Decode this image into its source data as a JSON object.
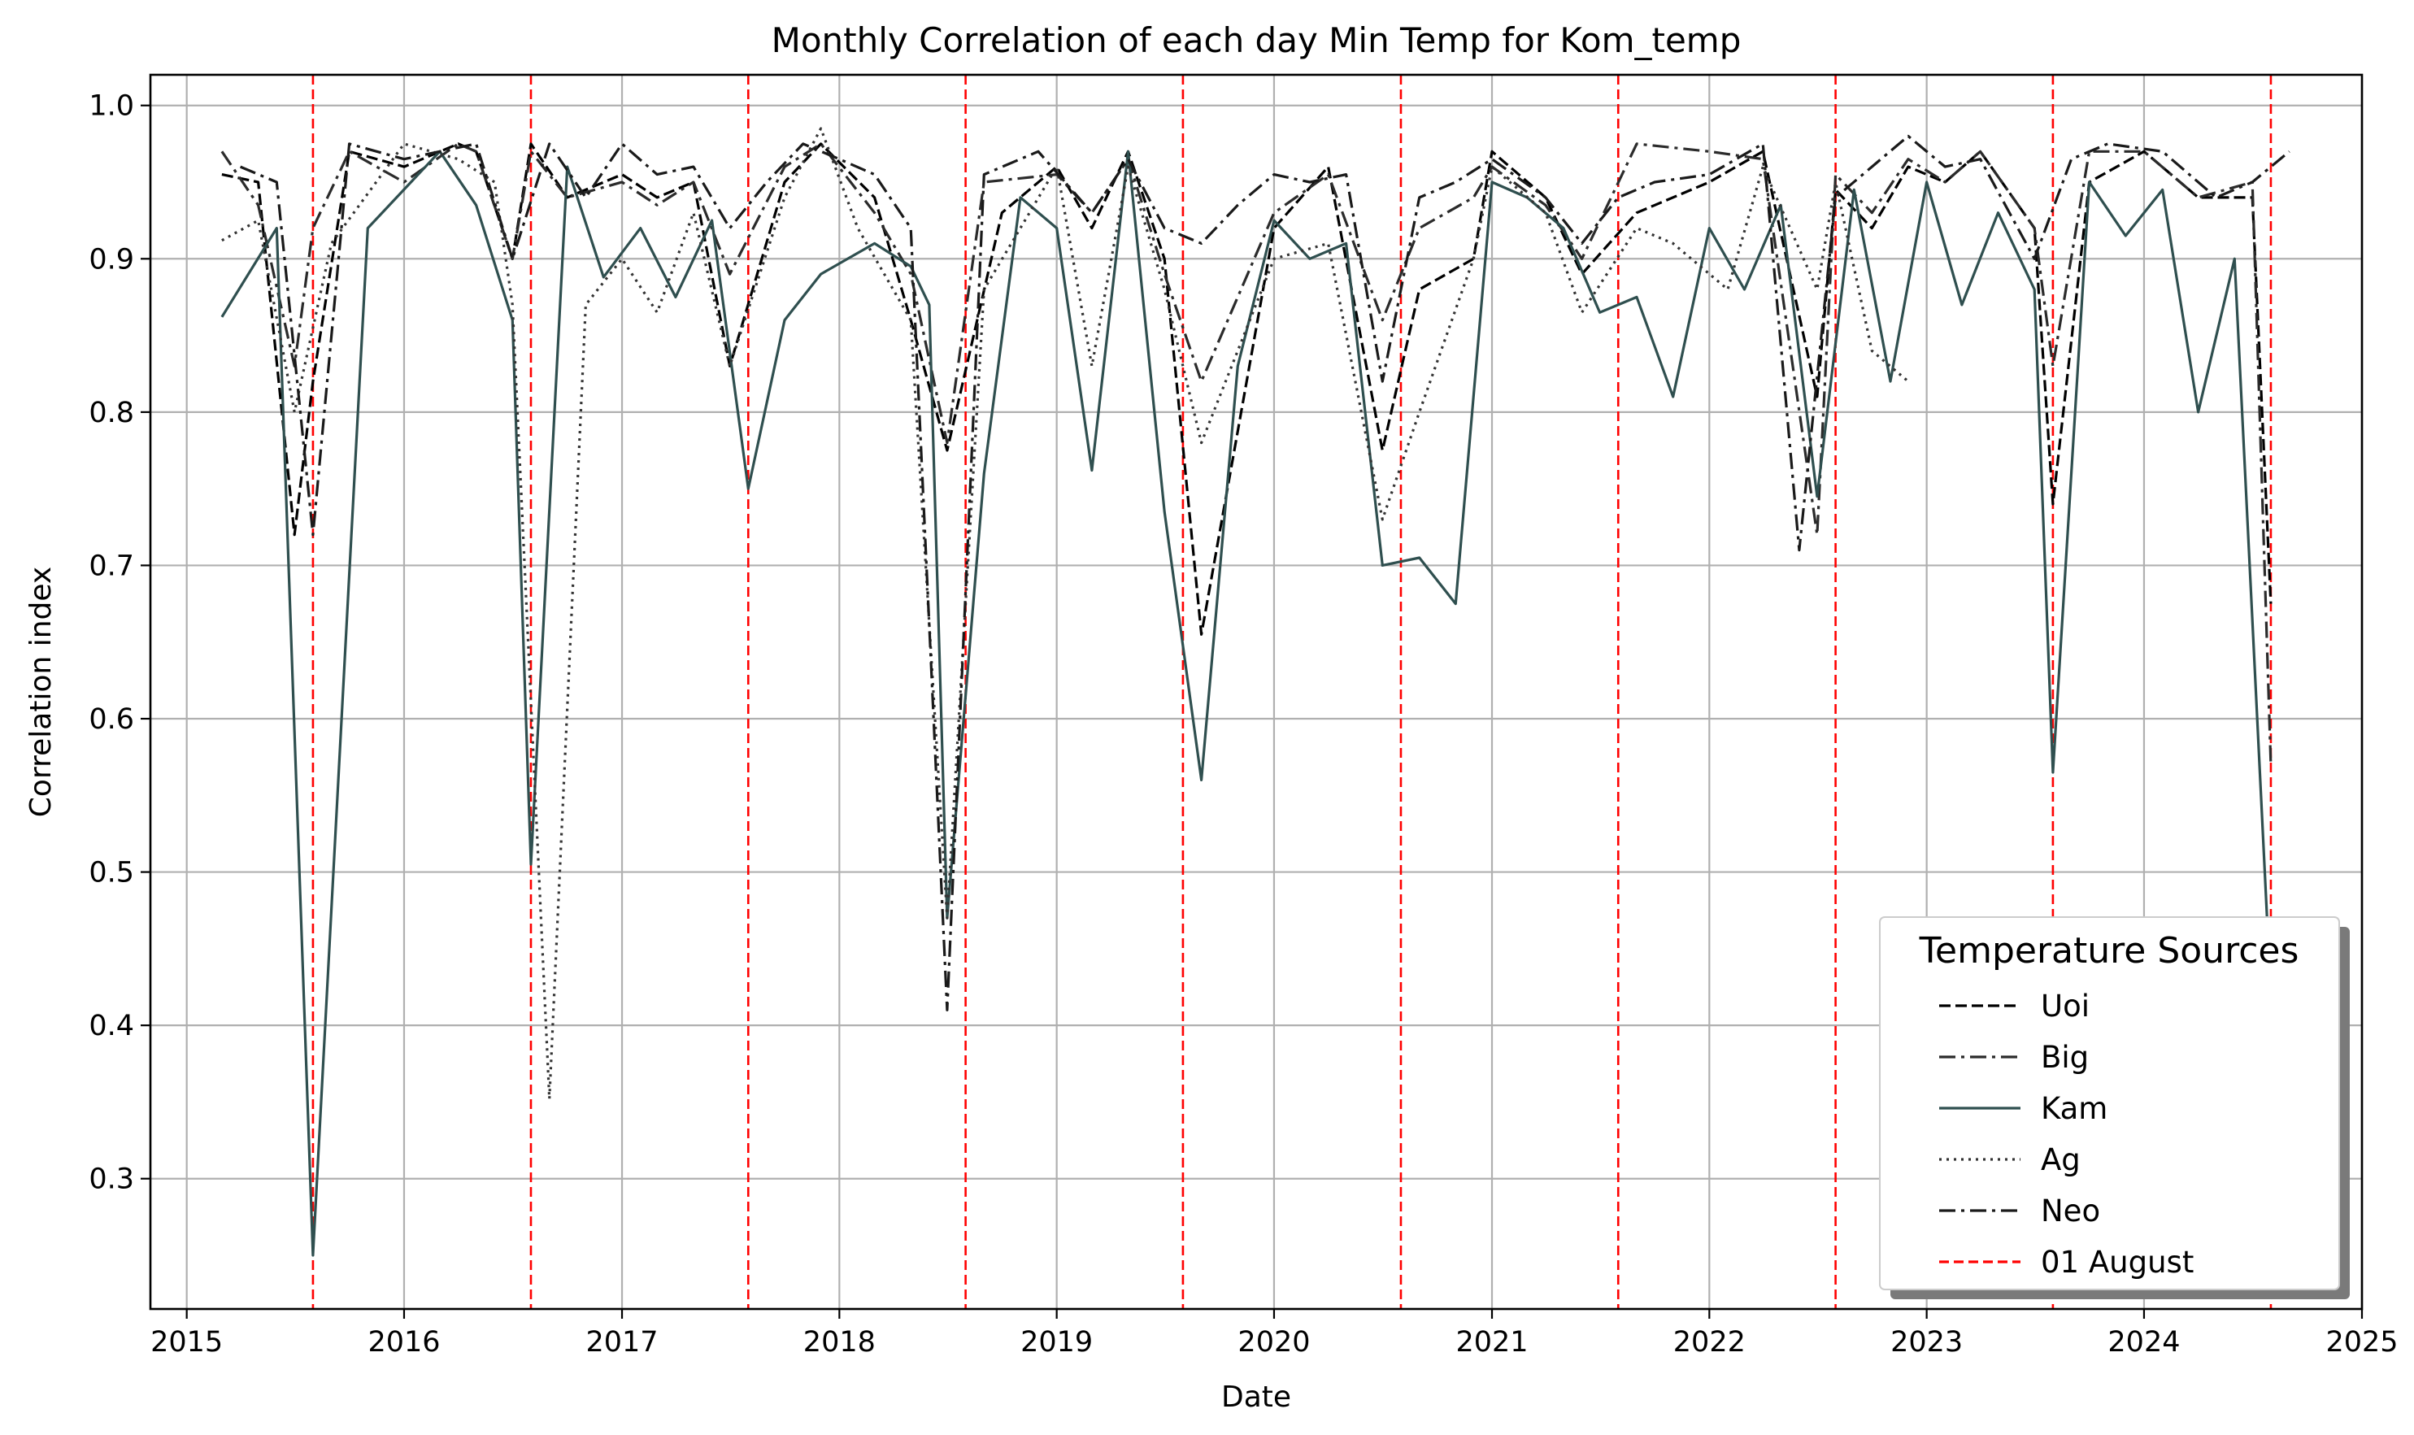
{
  "chart_data": {
    "type": "line",
    "title": "Monthly Correlation of each day Min Temp for Kom_temp",
    "xlabel": "Date",
    "ylabel": "Correlation index",
    "xlim": [
      "2014-11-01",
      "2025-01-01"
    ],
    "ylim": [
      0.215,
      1.02
    ],
    "x_ticks": [
      "2015",
      "2016",
      "2017",
      "2018",
      "2019",
      "2020",
      "2021",
      "2022",
      "2023",
      "2024",
      "2025"
    ],
    "y_ticks": [
      "0.3",
      "0.4",
      "0.5",
      "0.6",
      "0.7",
      "0.8",
      "0.9",
      "1.0"
    ],
    "grid": true,
    "legend": {
      "title": "Temperature Sources",
      "placement": "lower-right",
      "entries": [
        "Uoi",
        "Big",
        "Kam",
        "Ag",
        "Neo",
        "01 August"
      ]
    },
    "colors": {
      "Uoi": "#000000",
      "Big": "#2b2b2b",
      "Kam": "#2f4f4f",
      "Ag": "#333333",
      "Neo": "#1a1a1a",
      "01 August": "#ff0000"
    },
    "vlines": {
      "name": "01 August",
      "dates": [
        "2015-08-01",
        "2016-08-01",
        "2017-08-01",
        "2018-08-01",
        "2019-08-01",
        "2020-08-01",
        "2021-08-01",
        "2022-08-01",
        "2023-08-01",
        "2024-08-01"
      ]
    },
    "series": [
      {
        "name": "Uoi",
        "dash": "dashed",
        "x": [
          "2015-03-01",
          "2015-05-01",
          "2015-07-01",
          "2015-08-01",
          "2015-10-01",
          "2016-01-01",
          "2016-04-01",
          "2016-05-01",
          "2016-07-01",
          "2016-08-01",
          "2016-10-01",
          "2017-01-01",
          "2017-03-01",
          "2017-05-01",
          "2017-07-01",
          "2017-10-01",
          "2017-12-01",
          "2018-03-01",
          "2018-05-01",
          "2018-07-01",
          "2018-10-01",
          "2019-01-01",
          "2019-03-01",
          "2019-05-01",
          "2019-07-01",
          "2019-09-01",
          "2020-01-01",
          "2020-04-01",
          "2020-07-01",
          "2020-09-01",
          "2020-12-01",
          "2021-01-01",
          "2021-04-01",
          "2021-06-01",
          "2021-09-01",
          "2022-01-01",
          "2022-04-01",
          "2022-07-01",
          "2022-08-01",
          "2022-10-01",
          "2022-12-01",
          "2023-02-01",
          "2023-04-01",
          "2023-07-01",
          "2023-08-01",
          "2023-10-01",
          "2024-01-01",
          "2024-04-01",
          "2024-07-01",
          "2024-08-01"
        ],
        "y": [
          0.955,
          0.95,
          0.72,
          0.82,
          0.97,
          0.96,
          0.975,
          0.97,
          0.9,
          0.975,
          0.94,
          0.955,
          0.94,
          0.95,
          0.83,
          0.95,
          0.975,
          0.94,
          0.86,
          0.775,
          0.93,
          0.96,
          0.92,
          0.97,
          0.9,
          0.655,
          0.92,
          0.96,
          0.775,
          0.88,
          0.9,
          0.97,
          0.94,
          0.89,
          0.93,
          0.95,
          0.97,
          0.81,
          0.945,
          0.92,
          0.96,
          0.95,
          0.97,
          0.92,
          0.74,
          0.95,
          0.97,
          0.94,
          0.94,
          0.675
        ]
      },
      {
        "name": "Big",
        "dash": "dashdot",
        "x": [
          "2015-03-01",
          "2015-05-01",
          "2015-07-01",
          "2015-08-01",
          "2015-10-01",
          "2016-01-01",
          "2016-04-01",
          "2016-05-01",
          "2016-07-01",
          "2016-08-01",
          "2016-10-01",
          "2017-01-01",
          "2017-03-01",
          "2017-05-01",
          "2017-07-01",
          "2017-10-01",
          "2017-12-01",
          "2018-03-01",
          "2018-05-01",
          "2018-07-01",
          "2018-09-01",
          "2019-01-01",
          "2019-03-01",
          "2019-05-01",
          "2019-07-01",
          "2019-09-01",
          "2020-01-01",
          "2020-04-01",
          "2020-07-01",
          "2020-09-01",
          "2020-12-01",
          "2021-01-01",
          "2021-04-01",
          "2021-06-01",
          "2021-09-01",
          "2022-01-01",
          "2022-04-01",
          "2022-07-01",
          "2022-08-01",
          "2022-10-01",
          "2022-12-01",
          "2023-02-01",
          "2023-04-01",
          "2023-07-01",
          "2023-08-01",
          "2023-10-01",
          "2024-01-01",
          "2024-04-01",
          "2024-07-01",
          "2024-08-01"
        ],
        "y": [
          0.97,
          0.935,
          0.83,
          0.92,
          0.97,
          0.95,
          0.975,
          0.97,
          0.9,
          0.97,
          0.94,
          0.95,
          0.935,
          0.95,
          0.89,
          0.96,
          0.975,
          0.93,
          0.89,
          0.78,
          0.95,
          0.955,
          0.93,
          0.965,
          0.89,
          0.82,
          0.93,
          0.955,
          0.86,
          0.92,
          0.94,
          0.96,
          0.935,
          0.9,
          0.975,
          0.97,
          0.965,
          0.72,
          0.955,
          0.93,
          0.965,
          0.95,
          0.97,
          0.92,
          0.83,
          0.97,
          0.97,
          0.94,
          0.95,
          0.57
        ]
      },
      {
        "name": "Kam",
        "dash": "solid",
        "x": [
          "2015-03-01",
          "2015-06-01",
          "2015-08-01",
          "2015-11-01",
          "2016-03-01",
          "2016-05-01",
          "2016-07-01",
          "2016-08-01",
          "2016-10-01",
          "2016-12-01",
          "2017-02-01",
          "2017-04-01",
          "2017-06-01",
          "2017-08-01",
          "2017-10-01",
          "2017-12-01",
          "2018-03-01",
          "2018-05-01",
          "2018-06-01",
          "2018-07-01",
          "2018-09-01",
          "2018-11-01",
          "2019-01-01",
          "2019-03-01",
          "2019-05-01",
          "2019-07-01",
          "2019-09-01",
          "2019-11-01",
          "2020-01-01",
          "2020-03-01",
          "2020-05-01",
          "2020-07-01",
          "2020-09-01",
          "2020-11-01",
          "2021-01-01",
          "2021-03-01",
          "2021-05-01",
          "2021-07-01",
          "2021-09-01",
          "2021-11-01",
          "2022-01-01",
          "2022-03-01",
          "2022-05-01",
          "2022-07-01",
          "2022-09-01",
          "2022-11-01",
          "2023-01-01",
          "2023-03-01",
          "2023-05-01",
          "2023-07-01",
          "2023-08-01",
          "2023-10-01",
          "2023-12-01",
          "2024-02-01",
          "2024-04-01",
          "2024-06-01",
          "2024-08-01"
        ],
        "y": [
          0.862,
          0.92,
          0.25,
          0.92,
          0.97,
          0.935,
          0.86,
          0.505,
          0.96,
          0.888,
          0.92,
          0.875,
          0.925,
          0.75,
          0.86,
          0.89,
          0.91,
          0.895,
          0.87,
          0.47,
          0.76,
          0.94,
          0.92,
          0.762,
          0.97,
          0.735,
          0.56,
          0.83,
          0.925,
          0.9,
          0.91,
          0.7,
          0.705,
          0.675,
          0.95,
          0.94,
          0.92,
          0.865,
          0.875,
          0.81,
          0.92,
          0.88,
          0.935,
          0.745,
          0.945,
          0.82,
          0.95,
          0.87,
          0.93,
          0.88,
          0.565,
          0.95,
          0.915,
          0.945,
          0.8,
          0.9,
          0.42
        ]
      },
      {
        "name": "Ag",
        "dash": "dotted",
        "x": [
          "2015-03-01",
          "2015-05-01",
          "2015-07-01",
          "2015-09-01",
          "2016-01-01",
          "2016-04-01",
          "2016-06-01",
          "2016-07-01",
          "2016-09-01",
          "2016-11-01",
          "2017-01-01",
          "2017-03-01",
          "2017-05-01",
          "2017-07-01",
          "2017-10-01",
          "2017-12-01",
          "2018-02-01",
          "2018-05-01",
          "2018-07-01",
          "2018-09-01",
          "2019-01-01",
          "2019-03-01",
          "2019-05-01",
          "2019-07-01",
          "2019-09-01",
          "2020-01-01",
          "2020-04-01",
          "2020-07-01",
          "2020-09-01",
          "2020-12-01",
          "2021-01-01",
          "2021-04-01",
          "2021-06-01",
          "2021-09-01",
          "2021-11-01",
          "2022-02-01",
          "2022-04-01",
          "2022-07-01",
          "2022-08-01",
          "2022-10-01",
          "2022-12-01"
        ],
        "y": [
          0.912,
          0.925,
          0.8,
          0.91,
          0.975,
          0.965,
          0.95,
          0.87,
          0.352,
          0.87,
          0.9,
          0.865,
          0.93,
          0.83,
          0.94,
          0.985,
          0.92,
          0.86,
          0.47,
          0.88,
          0.96,
          0.83,
          0.96,
          0.88,
          0.78,
          0.9,
          0.91,
          0.73,
          0.8,
          0.9,
          0.96,
          0.93,
          0.865,
          0.92,
          0.91,
          0.88,
          0.96,
          0.88,
          0.95,
          0.84,
          0.82
        ]
      },
      {
        "name": "Neo",
        "dash": "dashdot",
        "x": [
          "2015-04-01",
          "2015-06-01",
          "2015-08-01",
          "2015-10-01",
          "2016-01-01",
          "2016-03-01",
          "2016-05-01",
          "2016-07-01",
          "2016-09-01",
          "2016-11-01",
          "2017-01-01",
          "2017-03-01",
          "2017-05-01",
          "2017-07-01",
          "2017-09-01",
          "2017-11-01",
          "2018-01-01",
          "2018-03-01",
          "2018-05-01",
          "2018-07-01",
          "2018-09-01",
          "2018-12-01",
          "2019-03-01",
          "2019-05-01",
          "2019-07-01",
          "2019-09-01",
          "2019-11-01",
          "2020-01-01",
          "2020-03-01",
          "2020-05-01",
          "2020-07-01",
          "2020-09-01",
          "2020-11-01",
          "2021-01-01",
          "2021-04-01",
          "2021-06-01",
          "2021-08-01",
          "2021-10-01",
          "2022-01-01",
          "2022-04-01",
          "2022-06-01",
          "2022-08-01",
          "2022-10-01",
          "2022-12-01",
          "2023-02-01",
          "2023-04-01",
          "2023-07-01",
          "2023-09-01",
          "2023-11-01",
          "2024-02-01",
          "2024-05-01",
          "2024-07-01",
          "2024-09-01"
        ],
        "y": [
          0.96,
          0.95,
          0.72,
          0.975,
          0.965,
          0.97,
          0.975,
          0.9,
          0.975,
          0.94,
          0.975,
          0.955,
          0.96,
          0.92,
          0.95,
          0.975,
          0.965,
          0.955,
          0.92,
          0.41,
          0.955,
          0.97,
          0.93,
          0.965,
          0.92,
          0.91,
          0.935,
          0.955,
          0.95,
          0.955,
          0.82,
          0.94,
          0.95,
          0.965,
          0.94,
          0.91,
          0.94,
          0.95,
          0.955,
          0.975,
          0.71,
          0.94,
          0.96,
          0.98,
          0.96,
          0.965,
          0.9,
          0.965,
          0.975,
          0.97,
          0.94,
          0.95,
          0.97
        ]
      }
    ]
  }
}
